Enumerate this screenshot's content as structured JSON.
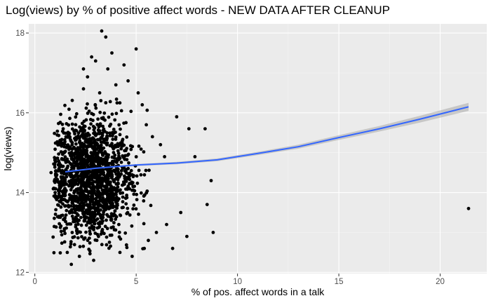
{
  "chart_data": {
    "type": "scatter",
    "title": "Log(views) by % of positive affect words - NEW DATA AFTER CLEANUP",
    "xlabel": "% of pos. affect words in a talk",
    "ylabel": "log(views)",
    "xlim": [
      -0.3,
      22.3
    ],
    "ylim": [
      11.97,
      18.23
    ],
    "x_ticks": [
      0,
      5,
      10,
      15,
      20
    ],
    "y_ticks": [
      12,
      14,
      16,
      18
    ],
    "x_tick_labels": [
      "0",
      "5",
      "10",
      "15",
      "20"
    ],
    "y_tick_labels": [
      "12",
      "14",
      "16",
      "18"
    ],
    "grid": true,
    "legend": "none",
    "colors": {
      "panel_background": "#ebebeb",
      "grid_major": "#ffffff",
      "grid_minor": "#f5f5f5",
      "points": "#000000",
      "smooth_line": "#3366ff",
      "confidence_band": "#999999"
    },
    "bulk_cloud": {
      "center_x": 2.8,
      "center_y": 14.35,
      "spread_x": 1.0,
      "spread_y": 0.75,
      "count": 1600
    },
    "points": [
      [
        0.8,
        14.5
      ],
      [
        1.0,
        14.0
      ],
      [
        1.1,
        14.3
      ],
      [
        1.2,
        15.2
      ],
      [
        1.4,
        15.6
      ],
      [
        1.6,
        12.5
      ],
      [
        1.8,
        12.2
      ],
      [
        2.2,
        12.4
      ],
      [
        2.4,
        16.6
      ],
      [
        2.4,
        17.1
      ],
      [
        2.6,
        16.9
      ],
      [
        2.8,
        17.4
      ],
      [
        2.9,
        12.3
      ],
      [
        3.0,
        17.3
      ],
      [
        3.2,
        16.5
      ],
      [
        3.3,
        18.05
      ],
      [
        3.5,
        17.9
      ],
      [
        3.6,
        17.1
      ],
      [
        3.8,
        17.5
      ],
      [
        4.0,
        16.7
      ],
      [
        4.2,
        12.5
      ],
      [
        4.4,
        17.2
      ],
      [
        4.6,
        16.8
      ],
      [
        4.8,
        12.4
      ],
      [
        5.0,
        17.6
      ],
      [
        5.1,
        16.5
      ],
      [
        5.3,
        16.2
      ],
      [
        5.4,
        12.6
      ],
      [
        5.5,
        15.7
      ],
      [
        5.6,
        12.8
      ],
      [
        5.8,
        15.4
      ],
      [
        6.0,
        13.0
      ],
      [
        6.2,
        15.2
      ],
      [
        6.4,
        14.9
      ],
      [
        6.5,
        13.2
      ],
      [
        6.8,
        12.6
      ],
      [
        7.0,
        15.9
      ],
      [
        7.2,
        13.5
      ],
      [
        7.5,
        12.9
      ],
      [
        7.6,
        15.6
      ],
      [
        7.9,
        14.9
      ],
      [
        8.4,
        15.6
      ],
      [
        8.5,
        13.7
      ],
      [
        8.7,
        14.3
      ],
      [
        8.8,
        13.0
      ],
      [
        21.4,
        13.6
      ]
    ],
    "smooth": {
      "x": [
        1.5,
        3,
        5,
        7,
        9,
        11,
        13,
        15,
        17,
        19,
        21.4
      ],
      "y": [
        14.52,
        14.61,
        14.69,
        14.74,
        14.82,
        14.98,
        15.15,
        15.38,
        15.6,
        15.84,
        16.15
      ],
      "band": [
        0.04,
        0.025,
        0.025,
        0.03,
        0.035,
        0.04,
        0.05,
        0.06,
        0.07,
        0.085,
        0.1
      ]
    }
  }
}
